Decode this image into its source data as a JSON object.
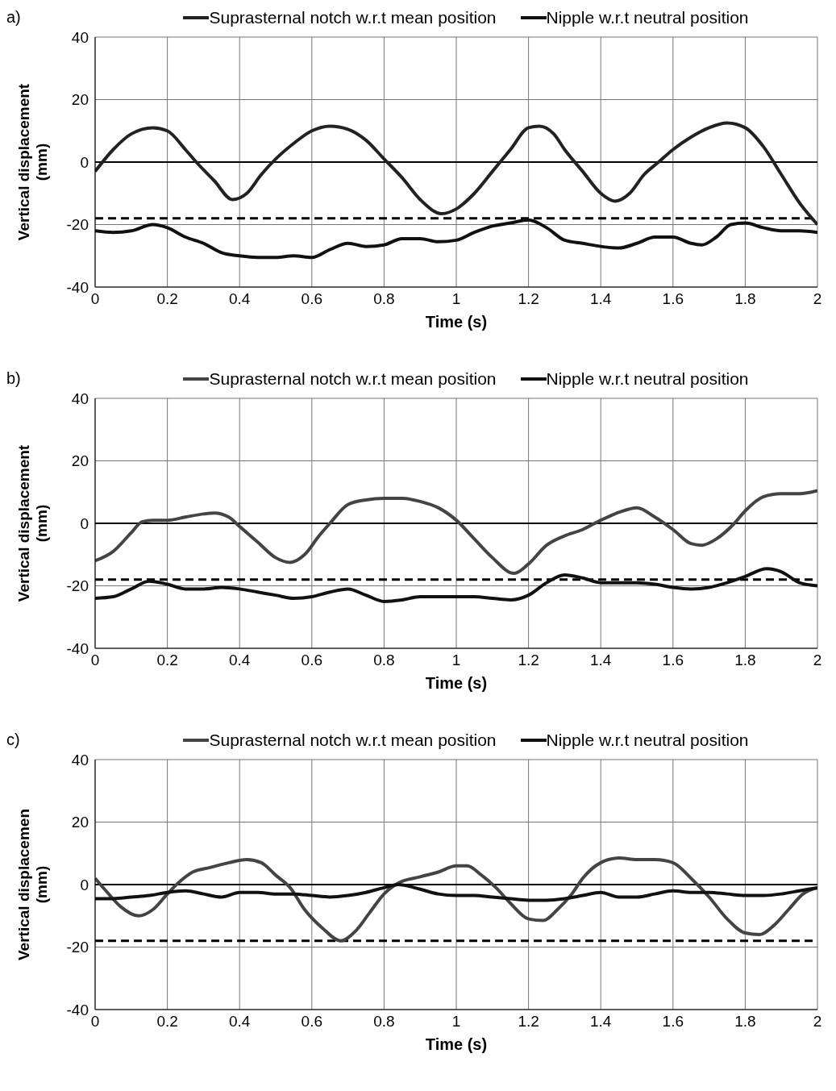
{
  "chart_data": [
    {
      "type": "line",
      "title": "a)",
      "xlabel": "Time (s)",
      "ylabel": "Vertical displacement (mm)",
      "xlim": [
        0,
        2
      ],
      "xticks": [
        0,
        0.2,
        0.4,
        0.6,
        0.8,
        1,
        1.2,
        1.4,
        1.6,
        1.8,
        2
      ],
      "ylim": [
        -40,
        40
      ],
      "yticks": [
        -40,
        -20,
        0,
        20,
        40
      ],
      "grid": true,
      "legend": "top",
      "line_style": "solid",
      "marker": "none",
      "ref_lines": [
        {
          "axis": "y",
          "value": 0,
          "color": "#000000",
          "line_style": "solid"
        },
        {
          "axis": "y",
          "value": -18,
          "color": "#000000",
          "line_style": "dashed"
        }
      ],
      "series": [
        {
          "name": "Suprasternal notch w.r.t mean position",
          "color": "#222222",
          "x": [
            0,
            0.05,
            0.1,
            0.16,
            0.2,
            0.25,
            0.28,
            0.33,
            0.38,
            0.42,
            0.46,
            0.5,
            0.55,
            0.6,
            0.65,
            0.7,
            0.75,
            0.8,
            0.85,
            0.9,
            0.96,
            1.0,
            1.05,
            1.1,
            1.15,
            1.2,
            1.23,
            1.27,
            1.3,
            1.35,
            1.4,
            1.44,
            1.48,
            1.52,
            1.56,
            1.6,
            1.65,
            1.7,
            1.75,
            1.8,
            1.85,
            1.9,
            1.95,
            2.0
          ],
          "values": [
            -3,
            4,
            9,
            11,
            10,
            4,
            0,
            -6,
            -12,
            -10,
            -4,
            1,
            6,
            10,
            11.5,
            10.5,
            7,
            1,
            -5,
            -12,
            -16.5,
            -15,
            -10,
            -3,
            4,
            11,
            11.5,
            9,
            4,
            -3,
            -10,
            -12.5,
            -10,
            -4,
            0,
            4,
            8,
            11,
            12.5,
            11,
            5,
            -4,
            -13,
            -20
          ]
        },
        {
          "name": "Nipple w.r.t neutral position",
          "color": "#111111",
          "x": [
            0,
            0.05,
            0.1,
            0.16,
            0.2,
            0.25,
            0.3,
            0.35,
            0.4,
            0.45,
            0.5,
            0.55,
            0.6,
            0.65,
            0.7,
            0.75,
            0.8,
            0.85,
            0.9,
            0.95,
            1.0,
            1.05,
            1.1,
            1.15,
            1.2,
            1.25,
            1.3,
            1.35,
            1.4,
            1.45,
            1.5,
            1.55,
            1.6,
            1.65,
            1.68,
            1.72,
            1.76,
            1.8,
            1.85,
            1.9,
            1.95,
            2
          ],
          "values": [
            -22,
            -22.5,
            -22,
            -20,
            -21,
            -24,
            -26,
            -29,
            -30,
            -30.5,
            -30.5,
            -30,
            -30.5,
            -28,
            -26,
            -27,
            -26.5,
            -24.5,
            -24.5,
            -25.5,
            -25,
            -22.5,
            -20.5,
            -19.5,
            -18.5,
            -21,
            -25,
            -26,
            -27,
            -27.5,
            -26,
            -24,
            -24,
            -26,
            -26.5,
            -24,
            -20,
            -19.5,
            -21,
            -22,
            -22,
            -22.5
          ]
        }
      ]
    },
    {
      "type": "line",
      "title": "b)",
      "xlabel": "Time (s)",
      "ylabel": "Vertical displacement (mm)",
      "xlim": [
        0,
        2
      ],
      "xticks": [
        0,
        0.2,
        0.4,
        0.6,
        0.8,
        1,
        1.2,
        1.4,
        1.6,
        1.8,
        2
      ],
      "ylim": [
        -40,
        40
      ],
      "yticks": [
        -40,
        -20,
        0,
        20,
        40
      ],
      "grid": true,
      "legend": "top",
      "line_style": "solid",
      "marker": "none",
      "ref_lines": [
        {
          "axis": "y",
          "value": 0,
          "color": "#000000",
          "line_style": "solid"
        },
        {
          "axis": "y",
          "value": -18,
          "color": "#000000",
          "line_style": "dashed"
        }
      ],
      "series": [
        {
          "name": "Suprasternal notch w.r.t mean position",
          "color": "#444444",
          "x": [
            0,
            0.05,
            0.1,
            0.13,
            0.16,
            0.2,
            0.25,
            0.3,
            0.33,
            0.37,
            0.4,
            0.45,
            0.5,
            0.54,
            0.58,
            0.62,
            0.65,
            0.7,
            0.75,
            0.8,
            0.85,
            0.9,
            0.95,
            1.0,
            1.05,
            1.1,
            1.16,
            1.2,
            1.25,
            1.3,
            1.35,
            1.4,
            1.45,
            1.5,
            1.55,
            1.6,
            1.65,
            1.68,
            1.72,
            1.77,
            1.8,
            1.85,
            1.9,
            1.95,
            2
          ],
          "values": [
            -12,
            -9,
            -3,
            0.5,
            1,
            1,
            2,
            3,
            3.3,
            2,
            -1,
            -6,
            -11,
            -12.5,
            -10,
            -4,
            0,
            6,
            7.5,
            8,
            8,
            7,
            5,
            1,
            -5,
            -11,
            -16,
            -13,
            -7,
            -4,
            -2,
            1,
            3.5,
            5,
            2,
            -2,
            -6.5,
            -7,
            -5,
            0,
            4,
            8.5,
            9.5,
            9.5,
            10.5
          ]
        },
        {
          "name": "Nipple w.r.t neutral position",
          "color": "#111111",
          "x": [
            0,
            0.05,
            0.1,
            0.15,
            0.2,
            0.25,
            0.3,
            0.35,
            0.4,
            0.45,
            0.5,
            0.55,
            0.6,
            0.65,
            0.7,
            0.75,
            0.8,
            0.85,
            0.9,
            0.95,
            1.0,
            1.05,
            1.1,
            1.15,
            1.2,
            1.25,
            1.3,
            1.35,
            1.4,
            1.45,
            1.5,
            1.55,
            1.6,
            1.65,
            1.7,
            1.75,
            1.8,
            1.86,
            1.9,
            1.95,
            2
          ],
          "values": [
            -24,
            -23.5,
            -21,
            -18.5,
            -19.5,
            -21,
            -21,
            -20.5,
            -21,
            -22,
            -23,
            -24,
            -23.5,
            -22,
            -21,
            -23,
            -25,
            -24.5,
            -23.5,
            -23.5,
            -23.5,
            -23.5,
            -24,
            -24.5,
            -23,
            -19,
            -16.5,
            -17.5,
            -19,
            -19,
            -19,
            -19.5,
            -20.5,
            -21,
            -20.5,
            -19,
            -17,
            -14.5,
            -15.5,
            -19,
            -20
          ]
        }
      ]
    },
    {
      "type": "line",
      "title": "c)",
      "xlabel": "Time (s)",
      "ylabel": "Vertical displacemen (mm)",
      "xlim": [
        0,
        2
      ],
      "xticks": [
        0,
        0.2,
        0.4,
        0.6,
        0.8,
        1,
        1.2,
        1.4,
        1.6,
        1.8,
        2
      ],
      "ylim": [
        -40,
        40
      ],
      "yticks": [
        -40,
        -20,
        0,
        20,
        40
      ],
      "grid": true,
      "legend": "top",
      "line_style": "solid",
      "marker": "none",
      "ref_lines": [
        {
          "axis": "y",
          "value": 0,
          "color": "#000000",
          "line_style": "solid"
        },
        {
          "axis": "y",
          "value": -18,
          "color": "#000000",
          "line_style": "dashed"
        }
      ],
      "series": [
        {
          "name": "Suprasternal notch w.r.t mean position",
          "color": "#444444",
          "x": [
            0,
            0.03,
            0.07,
            0.12,
            0.16,
            0.2,
            0.23,
            0.27,
            0.32,
            0.37,
            0.42,
            0.46,
            0.5,
            0.54,
            0.58,
            0.63,
            0.68,
            0.72,
            0.76,
            0.8,
            0.84,
            0.9,
            0.95,
            1.0,
            1.03,
            1.07,
            1.11,
            1.15,
            1.2,
            1.24,
            1.28,
            1.32,
            1.35,
            1.4,
            1.45,
            1.5,
            1.55,
            1.6,
            1.65,
            1.7,
            1.75,
            1.8,
            1.84,
            1.88,
            1.92,
            1.96,
            2
          ],
          "values": [
            2,
            -2,
            -7,
            -10,
            -8,
            -3,
            0.5,
            4,
            5.5,
            7,
            8,
            7,
            3,
            -1,
            -8,
            -14,
            -18,
            -15,
            -9,
            -3,
            0.5,
            2.5,
            4,
            6,
            6,
            3,
            -1,
            -6,
            -11,
            -11.5,
            -8,
            -3,
            2,
            7,
            8.5,
            8,
            8,
            7,
            2,
            -4,
            -11,
            -15.5,
            -16,
            -13,
            -8,
            -3,
            -1
          ]
        },
        {
          "name": "Nipple w.r.t neutral position",
          "color": "#111111",
          "x": [
            0,
            0.05,
            0.1,
            0.15,
            0.2,
            0.25,
            0.3,
            0.35,
            0.4,
            0.45,
            0.5,
            0.55,
            0.6,
            0.65,
            0.7,
            0.75,
            0.8,
            0.84,
            0.9,
            0.95,
            1,
            1.05,
            1.1,
            1.15,
            1.2,
            1.25,
            1.3,
            1.35,
            1.4,
            1.45,
            1.5,
            1.55,
            1.6,
            1.65,
            1.7,
            1.75,
            1.8,
            1.85,
            1.9,
            1.95,
            2
          ],
          "values": [
            -4.5,
            -4.5,
            -4,
            -3.5,
            -2.5,
            -2,
            -3,
            -4,
            -2.5,
            -2.5,
            -3,
            -3,
            -3.5,
            -4,
            -3.5,
            -2.5,
            -1,
            0,
            -1.5,
            -3,
            -3.5,
            -3.5,
            -4,
            -4.5,
            -5,
            -5,
            -4.5,
            -3.5,
            -2.5,
            -4,
            -4,
            -3,
            -2,
            -2.5,
            -2.5,
            -3,
            -3.5,
            -3.5,
            -3,
            -2,
            -1
          ]
        }
      ]
    }
  ]
}
